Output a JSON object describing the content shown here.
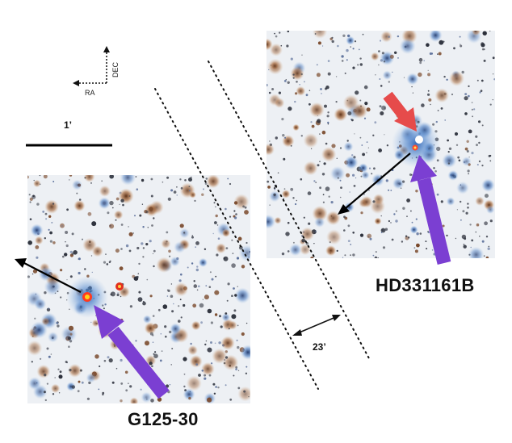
{
  "compass": {
    "ra_label": "RA",
    "dec_label": "DEC"
  },
  "scale_bar": {
    "label": "1’"
  },
  "separation": {
    "label": "23’"
  },
  "targets": {
    "right_name": "HD331161B",
    "left_name": "G125-30"
  },
  "colors": {
    "background": "#ffffff",
    "sky": "#eef1f4",
    "star_dark": "#2b2f3a",
    "star_brown": "#7a4a2c",
    "star_blue": "#3d6fb3",
    "halo_blue": "#3f78c4",
    "pointer_red": "#e64b4b",
    "pointer_purple": "#7b3fd2",
    "line_black": "#111111"
  }
}
